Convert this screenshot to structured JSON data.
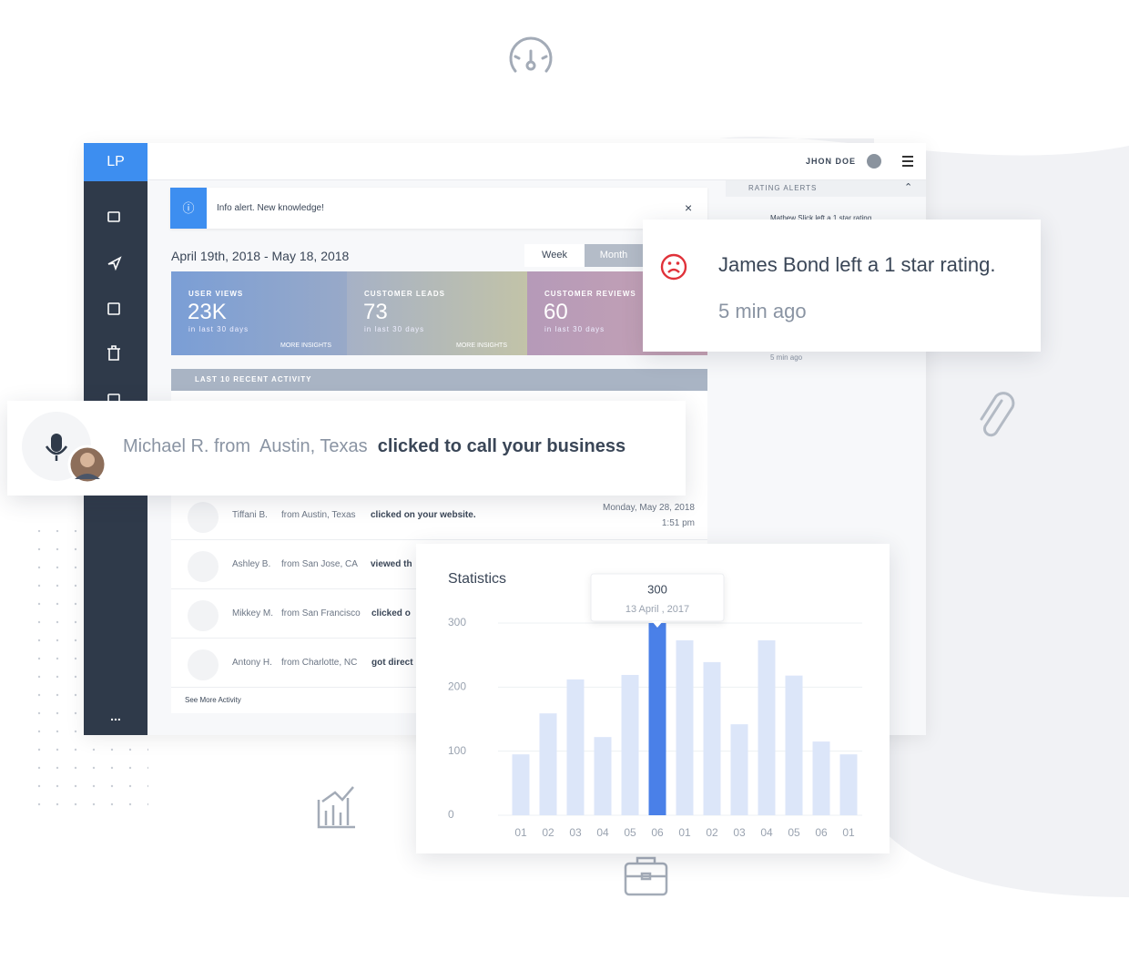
{
  "logo": "LP",
  "user": "JHON DOE",
  "alert": "Info alert. New knowledge!",
  "date_range": "April 19th, 2018 - May 18, 2018",
  "tabs": [
    "Week",
    "Month"
  ],
  "stats": [
    {
      "label": "USER VIEWS",
      "value": "23K",
      "sub": "in last 30 days",
      "link": "MORE INSIGHTS"
    },
    {
      "label": "CUSTOMER LEADS",
      "value": "73",
      "sub": "in last 30 days",
      "link": "MORE INSIGHTS"
    },
    {
      "label": "CUSTOMER REVIEWS",
      "value": "60",
      "sub": "in last 30 days"
    }
  ],
  "activity_title": "LAST 10 RECENT ACTIVITY",
  "activities": [
    {
      "name": "Tiffani B.",
      "location": "from Austin, Texas",
      "action": "clicked on your website.",
      "date": "Monday, May 28, 2018",
      "time": "1:51 pm"
    },
    {
      "name": "Ashley B.",
      "location": "from San Jose, CA",
      "action": "viewed th"
    },
    {
      "name": "Mikkey M.",
      "location": "from San Francisco",
      "action": "clicked o"
    },
    {
      "name": "Antony H.",
      "location": "from Charlotte, NC",
      "action": "got direct"
    }
  ],
  "see_more": "See More Activity",
  "sidebar_more": "...",
  "rating_title": "RATING ALERTS",
  "rating_peek": "Mathew Slick left a 1 star rating",
  "rating_peek_time": "5 min ago",
  "notification": {
    "text": "James Bond left a 1 star rating.",
    "time": "5 min ago"
  },
  "call": {
    "name": "Michael R. from",
    "location": "Austin, Texas",
    "action": "clicked to call your business"
  },
  "chart_data": {
    "type": "bar",
    "title": "Statistics",
    "categories": [
      "01",
      "02",
      "03",
      "04",
      "05",
      "06",
      "01",
      "02",
      "03",
      "04",
      "05",
      "06",
      "01"
    ],
    "values": [
      95,
      159,
      212,
      122,
      219,
      300,
      273,
      239,
      142,
      273,
      218,
      115,
      95
    ],
    "colors": [
      "#dce6f9",
      "#dce6f9",
      "#dce6f9",
      "#dce6f9",
      "#dce6f9",
      "#4a80e8",
      "#dce6f9",
      "#dce6f9",
      "#dce6f9",
      "#dce6f9",
      "#dce6f9",
      "#dce6f9",
      "#dce6f9"
    ],
    "tooltip_label": "13 April , 2017",
    "ylim": [
      0,
      300
    ],
    "yticks": [
      0,
      100,
      200,
      300
    ],
    "grid": true
  }
}
